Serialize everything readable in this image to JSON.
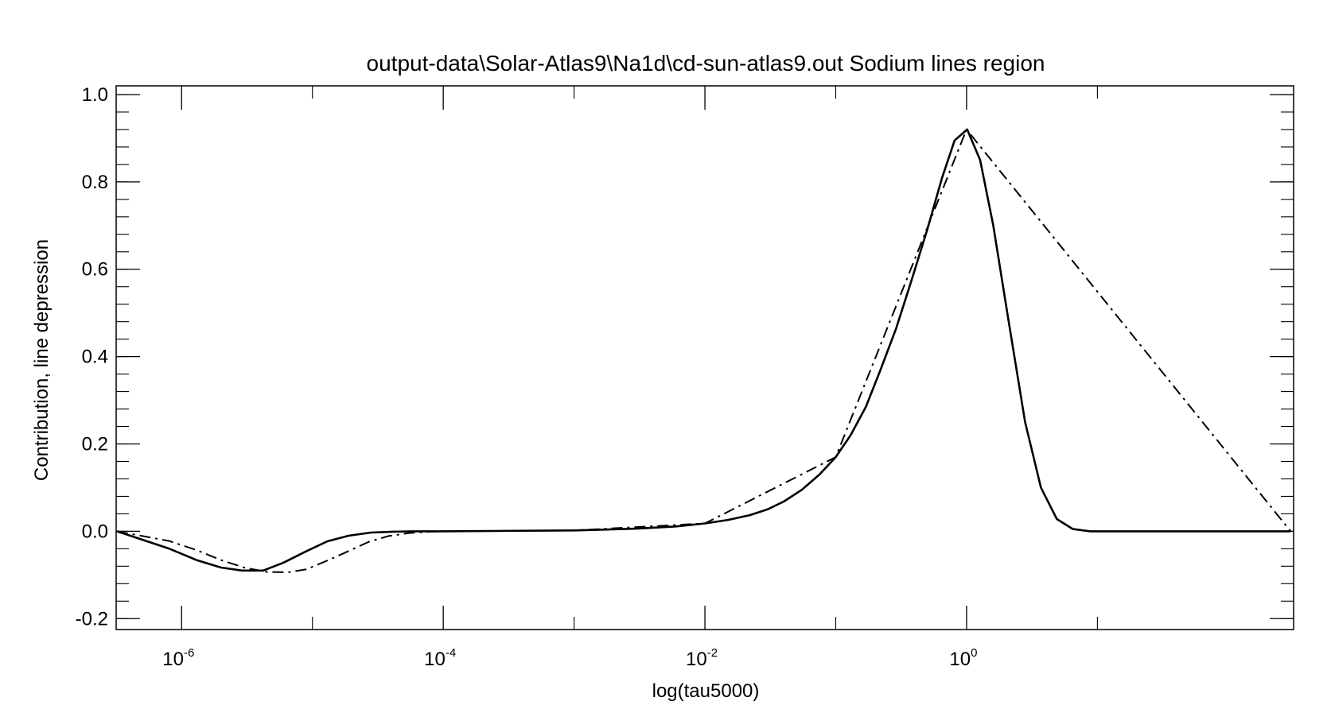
{
  "chart_data": {
    "type": "line",
    "title": "output-data\\Solar-Atlas9\\Na1d\\cd-sun-atlas9.out Sodium lines region",
    "xlabel": "log(tau5000)",
    "ylabel": "Contribution, line depression",
    "xscale": "log",
    "xlim": [
      3.16e-07,
      316
    ],
    "ylim": [
      -0.225,
      1.02
    ],
    "x_ticks": [
      {
        "base": "10",
        "exp": "-6",
        "value": 1e-06
      },
      {
        "base": "10",
        "exp": "-4",
        "value": 0.0001
      },
      {
        "base": "10",
        "exp": "-2",
        "value": 0.01
      },
      {
        "base": "10",
        "exp": "0",
        "value": 1
      }
    ],
    "y_ticks": [
      {
        "label": "-0.2",
        "value": -0.2
      },
      {
        "label": "0.0",
        "value": 0.0
      },
      {
        "label": "0.2",
        "value": 0.2
      },
      {
        "label": "0.4",
        "value": 0.4
      },
      {
        "label": "0.6",
        "value": 0.6
      },
      {
        "label": "0.8",
        "value": 0.8
      },
      {
        "label": "1.0",
        "value": 1.0
      }
    ],
    "grid": false,
    "legend": "none",
    "series": [
      {
        "style": "solid",
        "color": "#000000",
        "x": [
          3.2e-07,
          8.1e-07,
          1.3e-06,
          2e-06,
          2.9e-06,
          4.2e-06,
          6e-06,
          8.8e-06,
          1.3e-05,
          1.9e-05,
          2.8e-05,
          4.1e-05,
          6e-05,
          0.0001,
          0.001,
          0.003,
          0.006,
          0.01,
          0.015,
          0.022,
          0.03,
          0.04,
          0.055,
          0.075,
          0.1,
          0.13,
          0.17,
          0.22,
          0.29,
          0.38,
          0.5,
          0.65,
          0.81,
          1.01,
          1.27,
          1.6,
          2.1,
          2.8,
          3.7,
          4.9,
          6.5,
          8.8,
          15,
          50,
          300
        ],
        "y": [
          0.0,
          -0.04,
          -0.066,
          -0.083,
          -0.09,
          -0.09,
          -0.072,
          -0.047,
          -0.023,
          -0.01,
          -0.003,
          -0.001,
          0.0,
          0.0,
          0.002,
          0.006,
          0.011,
          0.018,
          0.026,
          0.037,
          0.05,
          0.068,
          0.095,
          0.13,
          0.17,
          0.22,
          0.285,
          0.37,
          0.465,
          0.575,
          0.69,
          0.81,
          0.895,
          0.92,
          0.85,
          0.7,
          0.48,
          0.25,
          0.1,
          0.028,
          0.005,
          0.0,
          0.0,
          0.0,
          0.0
        ]
      },
      {
        "style": "dash-dot",
        "color": "#000000",
        "x": [
          3.2e-07,
          8e-07,
          1.3e-06,
          2e-06,
          3e-06,
          4.5e-06,
          6.5e-06,
          9e-06,
          1.3e-05,
          1.9e-05,
          2.7e-05,
          3.8e-05,
          5.5e-05,
          8e-05,
          0.0001,
          0.001,
          0.01,
          0.1,
          1.0,
          300
        ],
        "y": [
          0.0,
          -0.022,
          -0.043,
          -0.066,
          -0.083,
          -0.093,
          -0.094,
          -0.087,
          -0.067,
          -0.045,
          -0.024,
          -0.011,
          -0.004,
          -0.001,
          0.0,
          0.002,
          0.018,
          0.17,
          0.92,
          0.0
        ]
      }
    ]
  }
}
